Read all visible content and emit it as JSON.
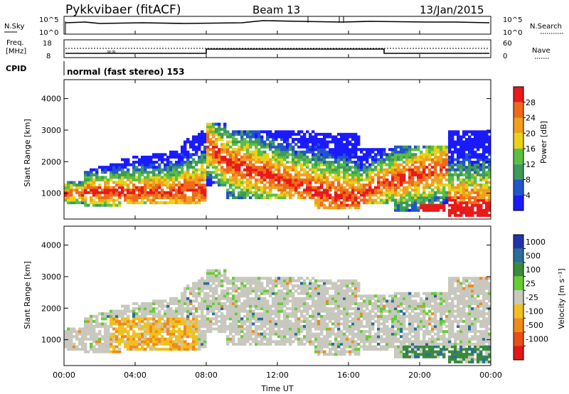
{
  "header": {
    "station": "Pykkvibaer (fitACF)",
    "beam": "Beam 13",
    "date": "13/Jan/2015"
  },
  "top_panels": {
    "nsky_label": "N.Sky",
    "nsky_ticks": [
      "10^5",
      "10^0"
    ],
    "nsearch_label": "N.Search",
    "freq_label": "Freq.",
    "freq_unit": "[MHz]",
    "freq_ticks": [
      "18",
      "8"
    ],
    "nave_label": "Nave",
    "nave_ticks": [
      "60",
      "0"
    ],
    "cpid_label": "CPID",
    "cpid_value": "normal (fast stereo) 153"
  },
  "colors": {
    "power": [
      "#1a1aff",
      "#2255cc",
      "#3d9a5a",
      "#5bbf44",
      "#e8d21a",
      "#f0a01e",
      "#ee6a1a",
      "#e81a1a"
    ],
    "velocity": [
      "#2233aa",
      "#2a6e9a",
      "#3a8a3a",
      "#66cc33",
      "#c8c8be",
      "#f0c020",
      "#f08a18",
      "#e85018",
      "#e01818"
    ]
  },
  "chart_data": [
    {
      "type": "heatmap",
      "name_key": "power",
      "ylabel": "Slant Range [km]",
      "ylim": [
        180,
        4600
      ],
      "yticks": [
        "4000",
        "3000",
        "2000",
        "1000"
      ],
      "colorbar_label": "Power [dB]",
      "colorbar_ticks": [
        "28",
        "24",
        "20",
        "16",
        "12",
        "8",
        "4"
      ]
    },
    {
      "type": "heatmap",
      "name_key": "velocity",
      "ylabel": "Slant Range [km]",
      "ylim": [
        180,
        4600
      ],
      "yticks": [
        "4000",
        "3000",
        "2000",
        "1000"
      ],
      "colorbar_label": "Velocity [m s⁻¹]",
      "colorbar_ticks": [
        "1000",
        "500",
        "100",
        "25",
        "-25",
        "-100",
        "-500",
        "-1000"
      ],
      "xlabel": "Time UT",
      "xticks": [
        "00:00",
        "04:00",
        "08:00",
        "12:00",
        "16:00",
        "20:00",
        "00:00"
      ]
    }
  ]
}
